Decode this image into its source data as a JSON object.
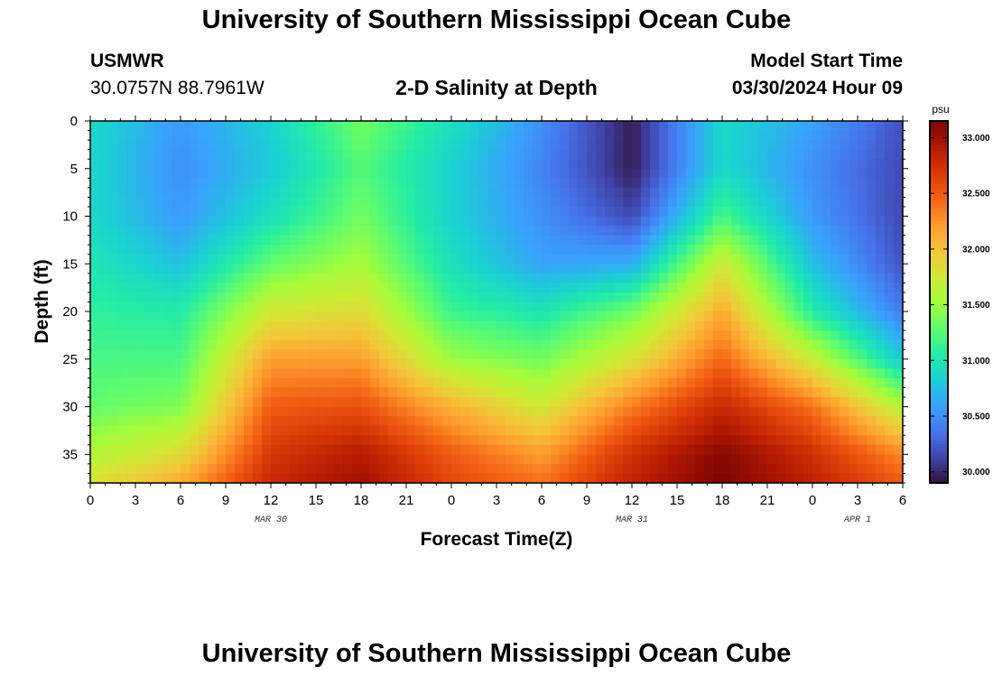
{
  "page": {
    "title_top": "University of Southern Mississippi Ocean Cube",
    "title_bottom": "University of Southern Mississippi Ocean Cube",
    "station_name": "USMWR",
    "station_coords": "30.0757N  88.7961W",
    "plot_title": "2-D Salinity at Depth",
    "model_start_label": "Model Start Time",
    "model_start_value": "03/30/2024 Hour 09"
  },
  "chart_data": {
    "type": "heatmap",
    "title": "2-D Salinity at Depth",
    "xlabel": "Forecast Time(Z)",
    "ylabel": "Depth (ft)",
    "x_tick_labels": [
      "0",
      "3",
      "6",
      "9",
      "12",
      "15",
      "18",
      "21",
      "0",
      "3",
      "6",
      "9",
      "12",
      "15",
      "18",
      "21",
      "0",
      "3",
      "6"
    ],
    "x_range_hours": [
      0,
      54
    ],
    "date_labels": [
      {
        "label": "MAR 30",
        "hour": 12
      },
      {
        "label": "MAR 31",
        "hour": 36
      },
      {
        "label": "APR 1",
        "hour": 51
      }
    ],
    "y_ticks": [
      0,
      5,
      10,
      15,
      20,
      25,
      30,
      35
    ],
    "y_range_ft": [
      0,
      38
    ],
    "colorbar": {
      "unit": "psu",
      "ticks": [
        "33.000",
        "32.500",
        "32.000",
        "31.500",
        "31.000",
        "30.500",
        "30.000"
      ],
      "range": [
        29.9,
        33.15
      ],
      "colors": [
        "#30123b",
        "#4145ab",
        "#4675ed",
        "#39a2fc",
        "#1bcfd4",
        "#24eca6",
        "#61fc6c",
        "#a4fc3b",
        "#d1e834",
        "#f3c63a",
        "#fe9b2d",
        "#f36315",
        "#d93806",
        "#b11901",
        "#7a0403"
      ]
    },
    "salinity_grid": {
      "hours": [
        0,
        6,
        12,
        18,
        24,
        30,
        36,
        42,
        48,
        54
      ],
      "depths_ft": [
        0,
        5,
        10,
        15,
        20,
        25,
        30,
        35,
        38
      ],
      "values": [
        [
          30.9,
          30.55,
          30.85,
          31.35,
          30.95,
          30.5,
          29.95,
          30.9,
          30.6,
          30.2
        ],
        [
          30.9,
          30.5,
          30.8,
          31.25,
          30.85,
          30.45,
          29.95,
          30.9,
          30.5,
          30.15
        ],
        [
          30.9,
          30.55,
          30.95,
          31.35,
          30.85,
          30.5,
          30.15,
          31.2,
          30.55,
          30.15
        ],
        [
          31.0,
          30.75,
          31.3,
          31.55,
          30.95,
          30.6,
          30.65,
          31.75,
          30.75,
          30.2
        ],
        [
          31.1,
          31.05,
          31.75,
          31.85,
          31.15,
          31.0,
          31.35,
          32.15,
          31.05,
          30.4
        ],
        [
          31.2,
          31.2,
          32.2,
          32.2,
          31.5,
          31.35,
          31.8,
          32.45,
          31.7,
          30.8
        ],
        [
          31.3,
          31.4,
          32.5,
          32.55,
          32.1,
          31.75,
          32.35,
          32.8,
          32.4,
          31.6
        ],
        [
          31.6,
          31.85,
          32.7,
          32.9,
          32.5,
          32.2,
          32.75,
          33.1,
          32.75,
          32.3
        ],
        [
          31.8,
          32.15,
          32.8,
          33.0,
          32.6,
          32.4,
          32.85,
          33.15,
          32.85,
          32.5
        ]
      ]
    }
  }
}
